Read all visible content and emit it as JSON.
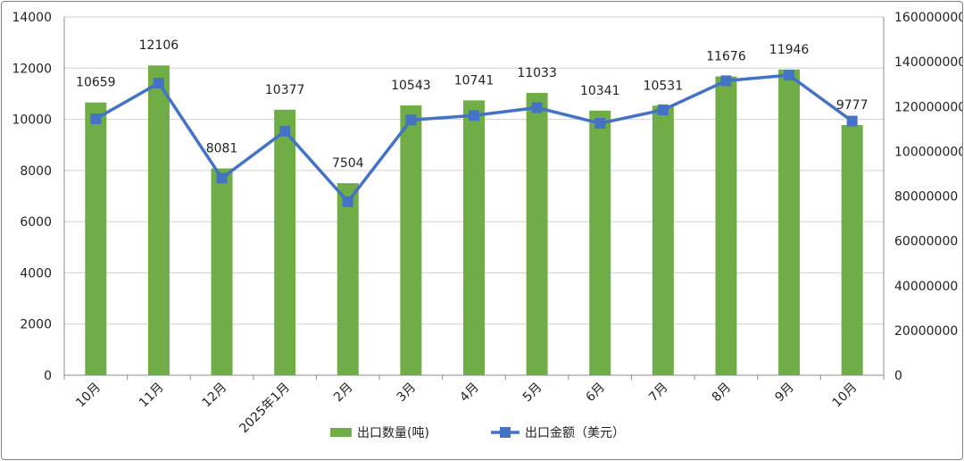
{
  "chart_data": {
    "type": "bar+line",
    "categories": [
      "10月",
      "11月",
      "12月",
      "2025年1月",
      "2月",
      "3月",
      "4月",
      "5月",
      "6月",
      "7月",
      "8月",
      "9月",
      "10月"
    ],
    "series": [
      {
        "name": "出口数量(吨)",
        "type": "bar",
        "axis": "left",
        "color": "#70ad47",
        "values": [
          10659,
          12106,
          8081,
          10377,
          7504,
          10543,
          10741,
          11033,
          10341,
          10531,
          11676,
          11946,
          9777
        ]
      },
      {
        "name": "出口金额（美元）",
        "type": "line",
        "axis": "right",
        "color": "#4472c4",
        "values": [
          114500000,
          130500000,
          88000000,
          109000000,
          77500000,
          114000000,
          116000000,
          119500000,
          112500000,
          118500000,
          131500000,
          134000000,
          113500000
        ]
      }
    ],
    "y_left": {
      "min": 0,
      "max": 14000,
      "step": 2000
    },
    "y_right": {
      "min": 0,
      "max": 160000000,
      "step": 20000000
    },
    "legend": "bottom",
    "grid": "horizontal"
  }
}
